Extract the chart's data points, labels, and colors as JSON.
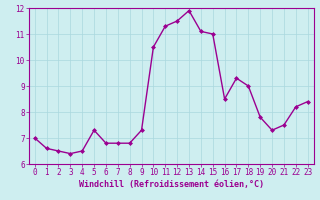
{
  "x": [
    0,
    1,
    2,
    3,
    4,
    5,
    6,
    7,
    8,
    9,
    10,
    11,
    12,
    13,
    14,
    15,
    16,
    17,
    18,
    19,
    20,
    21,
    22,
    23
  ],
  "y": [
    7.0,
    6.6,
    6.5,
    6.4,
    6.5,
    7.3,
    6.8,
    6.8,
    6.8,
    7.3,
    10.5,
    11.3,
    11.5,
    11.9,
    11.1,
    11.0,
    8.5,
    9.3,
    9.0,
    7.8,
    7.3,
    7.5,
    8.2,
    8.4
  ],
  "line_color": "#9b0091",
  "marker_color": "#9b0091",
  "bg_color": "#ceeef0",
  "grid_color": "#aad8de",
  "xlabel": "Windchill (Refroidissement éolien,°C)",
  "xlim": [
    -0.5,
    23.5
  ],
  "ylim": [
    6.0,
    12.0
  ],
  "yticks": [
    6,
    7,
    8,
    9,
    10,
    11,
    12
  ],
  "xticks": [
    0,
    1,
    2,
    3,
    4,
    5,
    6,
    7,
    8,
    9,
    10,
    11,
    12,
    13,
    14,
    15,
    16,
    17,
    18,
    19,
    20,
    21,
    22,
    23
  ],
  "tick_fontsize": 5.5,
  "xlabel_fontsize": 6.0,
  "line_width": 1.0,
  "marker_size": 2.0
}
